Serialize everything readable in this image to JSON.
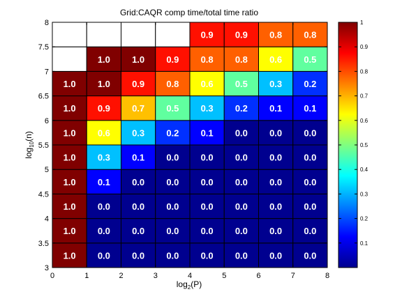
{
  "chart_data": {
    "type": "heatmap",
    "title": "Grid:CAQR comp time/total time ratio",
    "xlabel": {
      "prefix": "log",
      "sub": "2",
      "suffix": "(P)"
    },
    "ylabel": {
      "prefix": "log",
      "sub": "10",
      "suffix": "(n)"
    },
    "xlim": [
      0,
      8
    ],
    "ylim": [
      3,
      8
    ],
    "x_ticks": [
      "0",
      "1",
      "2",
      "3",
      "4",
      "5",
      "6",
      "7",
      "8"
    ],
    "y_ticks": [
      "3",
      "3.5",
      "4",
      "4.5",
      "5",
      "5.5",
      "6",
      "6.5",
      "7",
      "7.5",
      "8"
    ],
    "x_bins": [
      0,
      1,
      2,
      3,
      4,
      5,
      6,
      7,
      8
    ],
    "y_bins": [
      3,
      3.5,
      4,
      4.5,
      5,
      5.5,
      6,
      6.5,
      7,
      7.5,
      8
    ],
    "colormap": "jet",
    "clim": [
      0,
      1
    ],
    "colorbar_ticks": [
      "0.1",
      "0.2",
      "0.3",
      "0.4",
      "0.5",
      "0.6",
      "0.7",
      "0.8",
      "0.9",
      "1"
    ],
    "rows": [
      {
        "y_start": 3.0,
        "values": [
          1.0,
          0.0,
          0.0,
          0.0,
          0.0,
          0.0,
          0.0,
          0.0
        ]
      },
      {
        "y_start": 3.5,
        "values": [
          1.0,
          0.0,
          0.0,
          0.0,
          0.0,
          0.0,
          0.0,
          0.0
        ]
      },
      {
        "y_start": 4.0,
        "values": [
          1.0,
          0.0,
          0.0,
          0.0,
          0.0,
          0.0,
          0.0,
          0.0
        ]
      },
      {
        "y_start": 4.5,
        "values": [
          1.0,
          0.1,
          0.0,
          0.0,
          0.0,
          0.0,
          0.0,
          0.0
        ]
      },
      {
        "y_start": 5.0,
        "values": [
          1.0,
          0.3,
          0.1,
          0.0,
          0.0,
          0.0,
          0.0,
          0.0
        ]
      },
      {
        "y_start": 5.5,
        "values": [
          1.0,
          0.6,
          0.3,
          0.2,
          0.1,
          0.0,
          0.0,
          0.0
        ]
      },
      {
        "y_start": 6.0,
        "values": [
          1.0,
          0.9,
          0.7,
          0.5,
          0.3,
          0.2,
          0.1,
          0.1
        ]
      },
      {
        "y_start": 6.5,
        "values": [
          1.0,
          1.0,
          0.9,
          0.8,
          0.6,
          0.5,
          0.3,
          0.2
        ]
      },
      {
        "y_start": 7.0,
        "values": [
          null,
          1.0,
          1.0,
          0.9,
          0.8,
          0.8,
          0.6,
          0.5
        ]
      },
      {
        "y_start": 7.5,
        "values": [
          null,
          null,
          null,
          null,
          0.9,
          0.9,
          0.8,
          0.8
        ]
      }
    ],
    "cell_fill": {
      "0.0": "#00008f",
      "0.1": "#0000ff",
      "0.2": "#0030ff",
      "0.3": "#00c0ff",
      "0.5": "#60ff9f",
      "0.6": "#ffff00",
      "0.7": "#ffc000",
      "0.8": "#ff6000",
      "0.9": "#ff1000",
      "1.0": "#800000",
      "empty": "#ffffff"
    },
    "grid": true,
    "colorbar": "right"
  }
}
